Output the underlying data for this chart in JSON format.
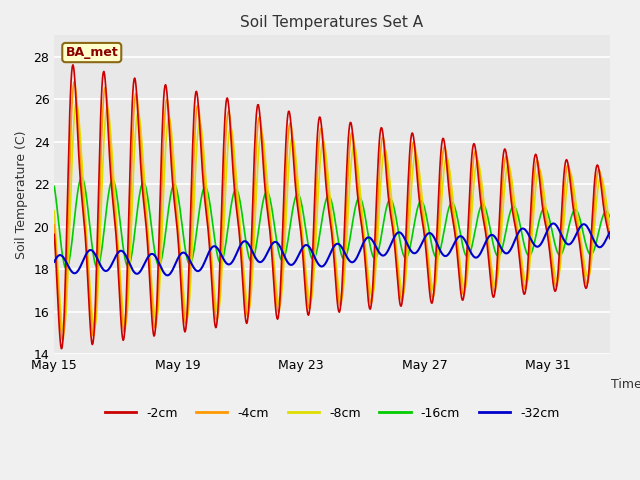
{
  "title": "Soil Temperatures Set A",
  "xlabel": "Time",
  "ylabel": "Soil Temperature (C)",
  "ylim": [
    14,
    29
  ],
  "yticks": [
    14,
    16,
    18,
    20,
    22,
    24,
    26,
    28
  ],
  "annotation": "BA_met",
  "colors": {
    "-2cm": "#cc0000",
    "-4cm": "#ff9900",
    "-8cm": "#dddd00",
    "-16cm": "#00cc00",
    "-32cm": "#0000cc"
  },
  "legend_labels": [
    "-2cm",
    "-4cm",
    "-8cm",
    "-16cm",
    "-32cm"
  ],
  "plot_bg_color": "#e8e8e8",
  "fig_bg_color": "#f0f0f0",
  "n_days": 18,
  "xtick_days": [
    0,
    4,
    8,
    12,
    16
  ],
  "xtick_labels": [
    "May 15",
    "May 19",
    "May 23",
    "May 27",
    "May 31"
  ]
}
